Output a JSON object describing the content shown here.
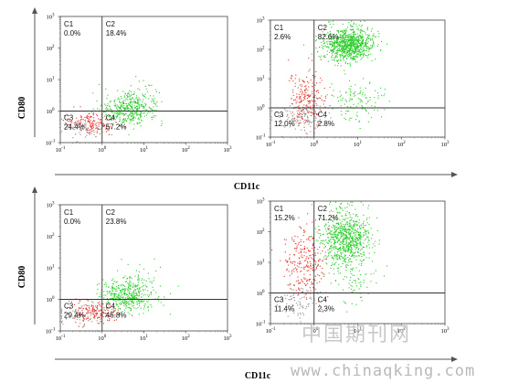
{
  "axis_labels": {
    "y": "CD80",
    "x": "CD11c"
  },
  "watermark": {
    "cn": "中国期刊网",
    "url": "www.chinaqking.com"
  },
  "colors": {
    "red_population": "#e8332a",
    "green_population": "#2bcc2b",
    "grey_population": "#8f8f8f",
    "gate_lines": "#333333"
  },
  "chart_data": [
    {
      "type": "scatter",
      "scale": "log",
      "xlim": [
        0.1,
        1000
      ],
      "ylim": [
        0.1,
        1000
      ],
      "gates": {
        "x": 1.0,
        "y": 1.0
      },
      "quadrants": [
        {
          "name": "C1",
          "value": "0.0%"
        },
        {
          "name": "C2",
          "value": "18.4%"
        },
        {
          "name": "C3",
          "value": "24.4%"
        },
        {
          "name": "C4",
          "value": "57.2%"
        }
      ],
      "populations": [
        {
          "color": "red",
          "center": [
            0.6,
            0.4
          ],
          "spread": [
            0.3,
            0.18
          ],
          "n": 160
        },
        {
          "color": "grey",
          "center": [
            0.35,
            0.3
          ],
          "spread": [
            0.3,
            0.15
          ],
          "n": 60
        },
        {
          "color": "green",
          "center": [
            4.0,
            1.2
          ],
          "spread": [
            0.32,
            0.22
          ],
          "n": 380
        },
        {
          "color": "green",
          "center": [
            8.0,
            3.0
          ],
          "spread": [
            0.25,
            0.3
          ],
          "n": 60
        }
      ]
    },
    {
      "type": "scatter",
      "scale": "log",
      "xlim": [
        0.1,
        1000
      ],
      "ylim": [
        0.1,
        1000
      ],
      "gates": {
        "x": 1.0,
        "y": 1.0
      },
      "quadrants": [
        {
          "name": "C1",
          "value": "2.6%"
        },
        {
          "name": "C2",
          "value": "82.6%"
        },
        {
          "name": "C3",
          "value": "12.0%"
        },
        {
          "name": "C4",
          "value": "2.8%"
        }
      ],
      "populations": [
        {
          "color": "green",
          "center": [
            6.0,
            150
          ],
          "spread": [
            0.28,
            0.28
          ],
          "n": 900
        },
        {
          "color": "red",
          "center": [
            0.7,
            2.0
          ],
          "spread": [
            0.22,
            0.55
          ],
          "n": 220
        },
        {
          "color": "grey",
          "center": [
            0.45,
            0.5
          ],
          "spread": [
            0.25,
            0.25
          ],
          "n": 120
        },
        {
          "color": "green",
          "center": [
            10,
            2.0
          ],
          "spread": [
            0.35,
            0.35
          ],
          "n": 120
        }
      ]
    },
    {
      "type": "scatter",
      "scale": "log",
      "xlim": [
        0.1,
        1000
      ],
      "ylim": [
        0.1,
        1000
      ],
      "gates": {
        "x": 1.0,
        "y": 1.0
      },
      "quadrants": [
        {
          "name": "C1",
          "value": "0.0%"
        },
        {
          "name": "C2",
          "value": "23.8%"
        },
        {
          "name": "C3",
          "value": "29.4%"
        },
        {
          "name": "C4",
          "value": "46.8%"
        }
      ],
      "populations": [
        {
          "color": "red",
          "center": [
            0.6,
            0.4
          ],
          "spread": [
            0.28,
            0.18
          ],
          "n": 180
        },
        {
          "color": "grey",
          "center": [
            0.35,
            0.3
          ],
          "spread": [
            0.3,
            0.15
          ],
          "n": 60
        },
        {
          "color": "green",
          "center": [
            4.0,
            1.3
          ],
          "spread": [
            0.32,
            0.25
          ],
          "n": 380
        },
        {
          "color": "green",
          "center": [
            8.0,
            4.0
          ],
          "spread": [
            0.25,
            0.3
          ],
          "n": 70
        }
      ]
    },
    {
      "type": "scatter",
      "scale": "log",
      "xlim": [
        0.1,
        1000
      ],
      "ylim": [
        0.1,
        1000
      ],
      "gates": {
        "x": 1.0,
        "y": 1.0
      },
      "quadrants": [
        {
          "name": "C1",
          "value": "15.2%"
        },
        {
          "name": "C2",
          "value": "71.2%"
        },
        {
          "name": "C3",
          "value": "11.4%"
        },
        {
          "name": "C4",
          "value": "2.3%"
        }
      ],
      "populations": [
        {
          "color": "green",
          "center": [
            5.0,
            60
          ],
          "spread": [
            0.28,
            0.45
          ],
          "n": 800
        },
        {
          "color": "red",
          "center": [
            0.6,
            10
          ],
          "spread": [
            0.22,
            0.55
          ],
          "n": 260
        },
        {
          "color": "grey",
          "center": [
            0.45,
            0.5
          ],
          "spread": [
            0.25,
            0.25
          ],
          "n": 80
        },
        {
          "color": "green",
          "center": [
            8.0,
            2.0
          ],
          "spread": [
            0.3,
            0.3
          ],
          "n": 60
        }
      ]
    }
  ]
}
